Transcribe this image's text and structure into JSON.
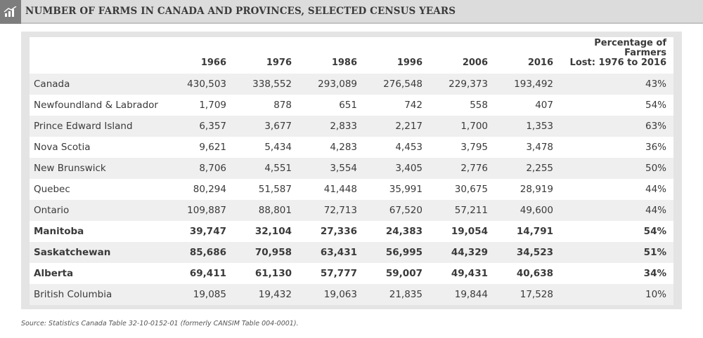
{
  "title": "NUMBER OF FARMS IN CANADA AND PROVINCES, SELECTED CENSUS YEARS",
  "source": "Source: Statistics Canada Table 32-10-0152-01 (formerly CANSIM Table 004-0001).",
  "chart_data": {
    "type": "table",
    "title": "NUMBER OF FARMS IN CANADA AND PROVINCES, SELECTED CENSUS YEARS",
    "columns": [
      "1966",
      "1976",
      "1986",
      "1996",
      "2006",
      "2016",
      "Percentage of Farmers Lost: 1976 to 2016"
    ],
    "pct_header_line1": "Percentage of Farmers",
    "pct_header_line2": "Lost: 1976 to 2016",
    "rows": [
      {
        "name": "Canada",
        "bold": false,
        "values": [
          "430,503",
          "338,552",
          "293,089",
          "276,548",
          "229,373",
          "193,492"
        ],
        "pct": "43%"
      },
      {
        "name": "Newfoundland & Labrador",
        "bold": false,
        "values": [
          "1,709",
          "878",
          "651",
          "742",
          "558",
          "407"
        ],
        "pct": "54%"
      },
      {
        "name": "Prince Edward Island",
        "bold": false,
        "values": [
          "6,357",
          "3,677",
          "2,833",
          "2,217",
          "1,700",
          "1,353"
        ],
        "pct": "63%"
      },
      {
        "name": "Nova Scotia",
        "bold": false,
        "values": [
          "9,621",
          "5,434",
          "4,283",
          "4,453",
          "3,795",
          "3,478"
        ],
        "pct": "36%"
      },
      {
        "name": "New Brunswick",
        "bold": false,
        "values": [
          "8,706",
          "4,551",
          "3,554",
          "3,405",
          "2,776",
          "2,255"
        ],
        "pct": "50%"
      },
      {
        "name": "Quebec",
        "bold": false,
        "values": [
          "80,294",
          "51,587",
          "41,448",
          "35,991",
          "30,675",
          "28,919"
        ],
        "pct": "44%"
      },
      {
        "name": "Ontario",
        "bold": false,
        "values": [
          "109,887",
          "88,801",
          "72,713",
          "67,520",
          "57,211",
          "49,600"
        ],
        "pct": "44%"
      },
      {
        "name": "Manitoba",
        "bold": true,
        "values": [
          "39,747",
          "32,104",
          "27,336",
          "24,383",
          "19,054",
          "14,791"
        ],
        "pct": "54%"
      },
      {
        "name": "Saskatchewan",
        "bold": true,
        "values": [
          "85,686",
          "70,958",
          "63,431",
          "56,995",
          "44,329",
          "34,523"
        ],
        "pct": "51%"
      },
      {
        "name": "Alberta",
        "bold": true,
        "values": [
          "69,411",
          "61,130",
          "57,777",
          "59,007",
          "49,431",
          "40,638"
        ],
        "pct": "34%"
      },
      {
        "name": "British Columbia",
        "bold": false,
        "values": [
          "19,085",
          "19,432",
          "19,063",
          "21,835",
          "19,844",
          "17,528"
        ],
        "pct": "10%"
      }
    ]
  }
}
